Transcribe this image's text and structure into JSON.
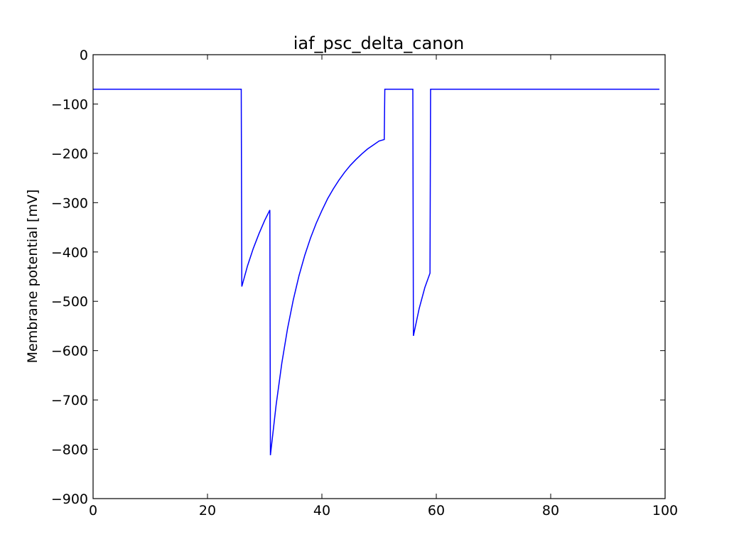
{
  "chart_data": {
    "type": "line",
    "title": "iaf_psc_delta_canon",
    "xlabel": "",
    "ylabel": "Membrane potential [mV]",
    "xlim": [
      0,
      100
    ],
    "ylim": [
      -900,
      0
    ],
    "xticks": [
      0,
      20,
      40,
      60,
      80,
      100
    ],
    "yticks": [
      0,
      -100,
      -200,
      -300,
      -400,
      -500,
      -600,
      -700,
      -800,
      -900
    ],
    "xtick_labels": [
      "0",
      "20",
      "40",
      "60",
      "80",
      "100"
    ],
    "ytick_labels": [
      "0",
      "−100",
      "−200",
      "−300",
      "−400",
      "−500",
      "−600",
      "−700",
      "−800",
      "−900"
    ],
    "grid": false,
    "legend": "none",
    "line_color": "#0000ff",
    "series": [
      {
        "x": [
          0,
          25.9,
          26,
          27,
          28,
          29,
          30,
          30.9,
          31,
          32,
          33,
          34,
          35,
          36,
          37,
          38,
          39,
          40,
          41,
          42,
          43,
          44,
          45,
          46,
          47,
          48,
          49,
          50,
          50.9,
          51,
          55.9,
          56,
          57,
          58,
          58.9,
          59,
          99
        ],
        "y": [
          -70,
          -70,
          -470,
          -428,
          -393,
          -363,
          -336,
          -315,
          -812,
          -710,
          -625,
          -555,
          -497,
          -448,
          -407,
          -372,
          -342,
          -316,
          -292,
          -272,
          -254,
          -238,
          -224,
          -212,
          -201,
          -191,
          -183,
          -175,
          -172,
          -70,
          -70,
          -570,
          -515,
          -472,
          -443,
          -70,
          -70
        ]
      }
    ]
  }
}
